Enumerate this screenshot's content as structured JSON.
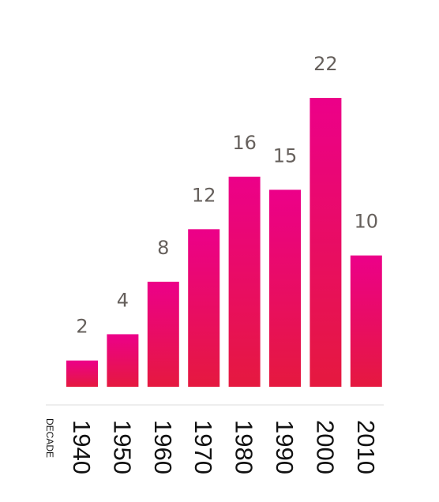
{
  "chart_data": {
    "type": "bar",
    "categories": [
      "1940",
      "1950",
      "1960",
      "1970",
      "1980",
      "1990",
      "2000",
      "2010"
    ],
    "values": [
      2,
      4,
      8,
      12,
      16,
      15,
      22,
      10
    ],
    "xlabel": "DECADE",
    "ylabel": "",
    "ylim": [
      0,
      22
    ],
    "grid": false,
    "legend": "none",
    "orientation_of_tick_labels": "vertical",
    "colors": {
      "bar_top": "#ec0089",
      "bar_bottom": "#e5193f",
      "value_label": "#66605c",
      "tick_label": "#111111",
      "axis_line": "#dddddd"
    }
  }
}
